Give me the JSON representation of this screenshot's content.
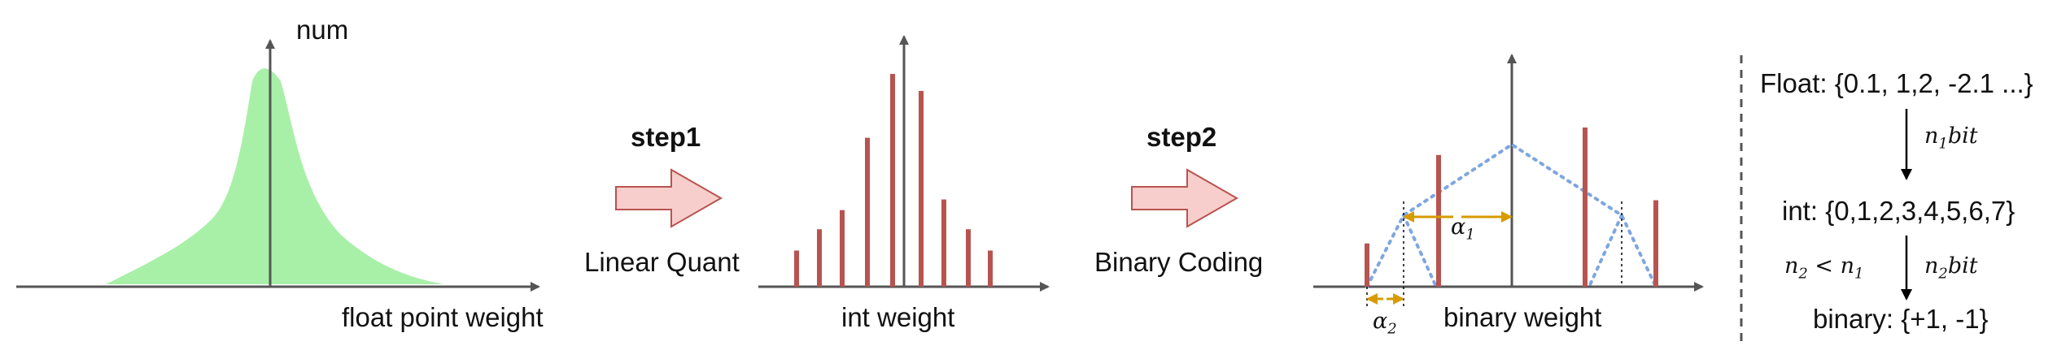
{
  "panel1": {
    "y_axis_label": "num",
    "x_axis_label": "float point weight"
  },
  "arrow1": {
    "step_label": "step1",
    "method_label": "Linear Quant"
  },
  "panel2": {
    "x_axis_label": "int weight",
    "bar_heights": [
      0.17,
      0.27,
      0.36,
      0.7,
      1.0,
      0.92,
      0.41,
      0.27,
      0.17
    ]
  },
  "arrow2": {
    "step_label": "step2",
    "method_label": "Binary Coding"
  },
  "panel3": {
    "x_axis_label": "binary weight",
    "alpha1_label": "α",
    "alpha1_sub": "1",
    "alpha2_label": "α",
    "alpha2_sub": "2",
    "bar_heights": [
      0.22,
      0.67,
      0.81,
      0.44
    ]
  },
  "legend": {
    "float_line": "Float: {0.1, 1,2, -2.1 ...}",
    "arrow1_label": "n",
    "arrow1_sub": "1",
    "arrow1_suffix": "bit",
    "int_line": "int: {0,1,2,3,4,5,6,7}",
    "condition_n2": "n",
    "condition_n2_sub": "2",
    "condition_op": " < n",
    "condition_n1_sub": "1",
    "arrow2_label": "n",
    "arrow2_sub": "2",
    "arrow2_suffix": "bit",
    "binary_line": "binary: {+1, -1}"
  },
  "colors": {
    "axis": "#555555",
    "gaussian_fill": "#a8f0a8",
    "bar": "#b85450",
    "block_arrow_fill": "#f8cecc",
    "block_arrow_stroke": "#b85450",
    "dotted": "#7ea6e0",
    "alpha_arrow": "#d79b00",
    "divider": "#555555"
  }
}
